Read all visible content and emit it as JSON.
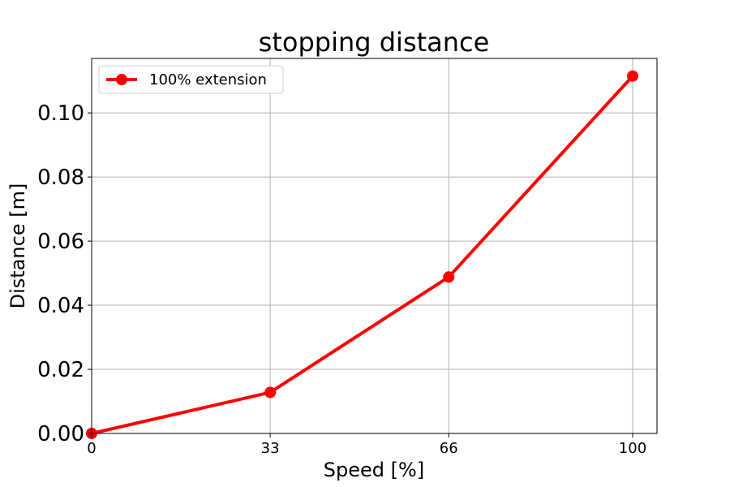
{
  "chart_data": {
    "type": "line",
    "title": "stopping distance",
    "xlabel": "Speed [%]",
    "ylabel": "Distance [m]",
    "x_ticks": [
      0,
      33,
      66,
      100
    ],
    "x_tick_labels": [
      "0",
      "33",
      "66",
      "100"
    ],
    "y_ticks": [
      0,
      0.02,
      0.04,
      0.06,
      0.08,
      0.1
    ],
    "y_tick_labels": [
      "0.00",
      "0.02",
      "0.04",
      "0.06",
      "0.08",
      "0.10"
    ],
    "xlim": [
      0,
      104.5
    ],
    "ylim": [
      0,
      0.117
    ],
    "grid": true,
    "legend_position": "upper-left",
    "series": [
      {
        "name": "100% extension",
        "color": "#ff0000",
        "marker": "circle",
        "x": [
          0,
          33,
          66,
          100
        ],
        "y": [
          0.0,
          0.0128,
          0.0488,
          0.1115
        ]
      }
    ]
  }
}
